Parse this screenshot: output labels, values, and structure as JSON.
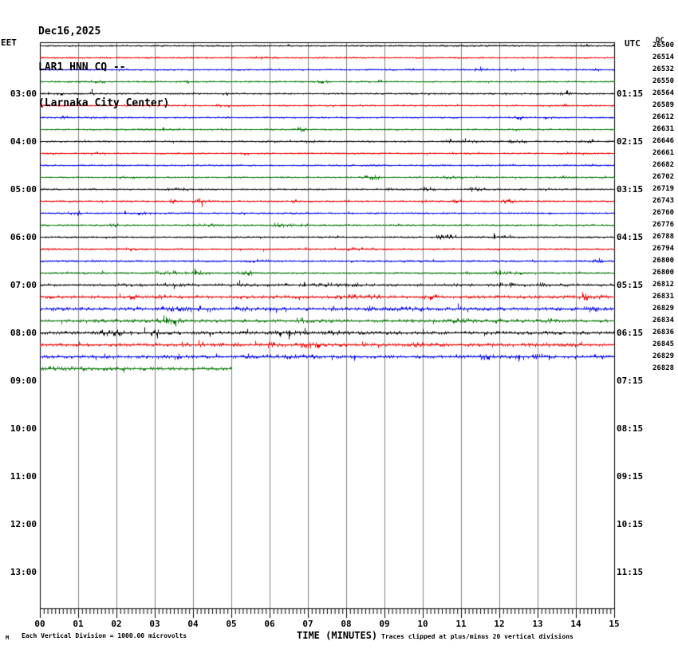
{
  "header": {
    "date": "Dec16,2025",
    "station": "LAR1 HNN CQ --",
    "location": "(Larnaka City Center)"
  },
  "axes": {
    "left_label": "EET",
    "right_label": "UTC",
    "dc_header": "DC",
    "x_label": "TIME (MINUTES)",
    "x_ticks": [
      "00",
      "01",
      "02",
      "03",
      "04",
      "05",
      "06",
      "07",
      "08",
      "09",
      "10",
      "11",
      "12",
      "13",
      "14",
      "15"
    ],
    "left_hour_labels": [
      {
        "text": "03:00",
        "row": 4
      },
      {
        "text": "04:00",
        "row": 8
      },
      {
        "text": "05:00",
        "row": 12
      },
      {
        "text": "06:00",
        "row": 16
      },
      {
        "text": "07:00",
        "row": 20
      },
      {
        "text": "08:00",
        "row": 24
      },
      {
        "text": "09:00",
        "row": 28
      },
      {
        "text": "10:00",
        "row": 32
      },
      {
        "text": "11:00",
        "row": 36
      },
      {
        "text": "12:00",
        "row": 40
      },
      {
        "text": "13:00",
        "row": 44
      }
    ],
    "right_hour_labels": [
      {
        "text": "01:15",
        "row": 4
      },
      {
        "text": "02:15",
        "row": 8
      },
      {
        "text": "03:15",
        "row": 12
      },
      {
        "text": "04:15",
        "row": 16
      },
      {
        "text": "05:15",
        "row": 20
      },
      {
        "text": "06:15",
        "row": 24
      },
      {
        "text": "07:15",
        "row": 28
      },
      {
        "text": "08:15",
        "row": 32
      },
      {
        "text": "09:15",
        "row": 36
      },
      {
        "text": "10:15",
        "row": 40
      },
      {
        "text": "11:15",
        "row": 44
      }
    ]
  },
  "footer": {
    "scale_glyph": "M",
    "left_note": "Each Vertical Division = 1000.00 microvolts",
    "right_note": "Traces clipped at plus/minus 20 vertical divisions"
  },
  "chart_data": {
    "type": "line",
    "variant": "helicorder",
    "title": "LAR1 HNN CQ -- (Larnaka City Center) Dec16,2025",
    "xlabel": "TIME (MINUTES)",
    "x_range_minutes": [
      0,
      15
    ],
    "minutes_per_line": 15,
    "grid": "vertical-minute-lines",
    "legend": "none",
    "scale_note": "Each Vertical Division = 1000.00 microvolts",
    "clip_note": "Traces clipped at plus/minus 20 vertical divisions",
    "colors": {
      "cycle": [
        "#000000",
        "#ee0000",
        "#0000ee",
        "#007700"
      ],
      "grid": "#808080",
      "border": "#000000",
      "background": "#ffffff"
    },
    "rows": [
      {
        "eet_start": "02:00",
        "dc": "26500",
        "amp": 0.9,
        "end_min": 15,
        "bursts": [
          [
            7.5,
            12.5,
            0.5
          ]
        ],
        "spikes": []
      },
      {
        "eet_start": "02:15",
        "dc": "26514",
        "amp": 0.9,
        "end_min": 15,
        "bursts": [
          [
            5.3,
            6.3,
            1.0
          ]
        ],
        "spikes": []
      },
      {
        "eet_start": "02:30",
        "dc": "26532",
        "amp": 0.8,
        "end_min": 15,
        "bursts": [
          [
            9.0,
            10.0,
            0.5
          ]
        ],
        "spikes": []
      },
      {
        "eet_start": "02:45",
        "dc": "26550",
        "amp": 0.8,
        "end_min": 15,
        "bursts": [
          [
            0.3,
            1.8,
            0.6
          ]
        ],
        "spikes": []
      },
      {
        "eet_start": "03:00",
        "dc": "26564",
        "amp": 0.9,
        "end_min": 15,
        "bursts": [
          [
            9.5,
            12.0,
            0.4
          ]
        ],
        "spikes": [
          [
            0.2,
            2
          ]
        ]
      },
      {
        "eet_start": "03:15",
        "dc": "26589",
        "amp": 0.9,
        "end_min": 15,
        "bursts": [
          [
            4.3,
            5.3,
            0.9
          ]
        ],
        "spikes": []
      },
      {
        "eet_start": "03:30",
        "dc": "26612",
        "amp": 0.8,
        "end_min": 15,
        "bursts": [
          [
            1.0,
            2.2,
            0.5
          ]
        ],
        "spikes": []
      },
      {
        "eet_start": "03:45",
        "dc": "26631",
        "amp": 0.8,
        "end_min": 15,
        "bursts": [
          [
            2.2,
            3.8,
            0.7
          ]
        ],
        "spikes": [
          [
            3.2,
            3
          ]
        ]
      },
      {
        "eet_start": "04:00",
        "dc": "26646",
        "amp": 0.9,
        "end_min": 15,
        "bursts": [
          [
            11.0,
            12.6,
            0.5
          ]
        ],
        "spikes": []
      },
      {
        "eet_start": "04:15",
        "dc": "26661",
        "amp": 0.9,
        "end_min": 15,
        "bursts": [
          [
            13.4,
            14.3,
            0.8
          ]
        ],
        "spikes": []
      },
      {
        "eet_start": "04:30",
        "dc": "26682",
        "amp": 0.9,
        "end_min": 15,
        "bursts": [
          [
            8.4,
            9.3,
            0.7
          ]
        ],
        "spikes": []
      },
      {
        "eet_start": "04:45",
        "dc": "26702",
        "amp": 0.8,
        "end_min": 15,
        "bursts": [],
        "spikes": []
      },
      {
        "eet_start": "05:00",
        "dc": "26719",
        "amp": 0.9,
        "end_min": 15,
        "bursts": [
          [
            12.9,
            13.7,
            0.7
          ]
        ],
        "spikes": []
      },
      {
        "eet_start": "05:15",
        "dc": "26743",
        "amp": 1.0,
        "end_min": 15,
        "bursts": [
          [
            3.8,
            4.7,
            1.3
          ]
        ],
        "spikes": []
      },
      {
        "eet_start": "05:30",
        "dc": "26760",
        "amp": 0.9,
        "end_min": 15,
        "bursts": [],
        "spikes": [
          [
            2.2,
            3
          ]
        ]
      },
      {
        "eet_start": "05:45",
        "dc": "26776",
        "amp": 1.0,
        "end_min": 15,
        "bursts": [
          [
            3.9,
            4.9,
            1.1
          ]
        ],
        "spikes": []
      },
      {
        "eet_start": "06:00",
        "dc": "26788",
        "amp": 1.0,
        "end_min": 15,
        "bursts": [
          [
            11.5,
            12.5,
            0.9
          ]
        ],
        "spikes": [
          [
            11.85,
            5
          ]
        ]
      },
      {
        "eet_start": "06:15",
        "dc": "26794",
        "amp": 1.2,
        "end_min": 15,
        "bursts": [
          [
            7.7,
            8.7,
            0.8
          ]
        ],
        "spikes": []
      },
      {
        "eet_start": "06:30",
        "dc": "26800",
        "amp": 1.3,
        "end_min": 15,
        "bursts": [
          [
            5.3,
            6.1,
            1.1
          ],
          [
            9.4,
            10.6,
            0.7
          ]
        ],
        "spikes": []
      },
      {
        "eet_start": "06:45",
        "dc": "26800",
        "amp": 1.3,
        "end_min": 15,
        "bursts": [
          [
            3.7,
            4.5,
            1.3
          ],
          [
            11.7,
            12.8,
            1.1
          ]
        ],
        "spikes": [
          [
            4.05,
            6
          ],
          [
            12.0,
            5
          ]
        ]
      },
      {
        "eet_start": "07:00",
        "dc": "26812",
        "amp": 1.7,
        "end_min": 15,
        "bursts": [
          [
            6.4,
            8.6,
            0.9
          ]
        ],
        "spikes": [
          [
            6.9,
            4
          ],
          [
            12.0,
            -3
          ]
        ]
      },
      {
        "eet_start": "07:15",
        "dc": "26831",
        "amp": 1.9,
        "end_min": 15,
        "bursts": [
          [
            7.4,
            9.3,
            1.5
          ],
          [
            13.8,
            14.9,
            1.1
          ]
        ],
        "spikes": []
      },
      {
        "eet_start": "07:30",
        "dc": "26829",
        "amp": 2.1,
        "end_min": 15,
        "bursts": [
          [
            2.7,
            4.7,
            1.3
          ],
          [
            8.9,
            10.3,
            0.9
          ]
        ],
        "spikes": [
          [
            6.0,
            -4
          ]
        ]
      },
      {
        "eet_start": "07:45",
        "dc": "26834",
        "amp": 2.1,
        "end_min": 15,
        "bursts": [
          [
            2.9,
            3.7,
            1.6
          ],
          [
            10.4,
            11.6,
            0.9
          ]
        ],
        "spikes": [
          [
            3.3,
            5
          ]
        ]
      },
      {
        "eet_start": "08:00",
        "dc": "26836",
        "amp": 2.2,
        "end_min": 15,
        "bursts": [
          [
            1.4,
            2.6,
            0.9
          ],
          [
            5.9,
            7.1,
            1.1
          ]
        ],
        "spikes": [
          [
            6.5,
            -8
          ]
        ]
      },
      {
        "eet_start": "08:15",
        "dc": "26845",
        "amp": 2.1,
        "end_min": 15,
        "bursts": [
          [
            9.5,
            10.2,
            1.3
          ],
          [
            12.4,
            14.6,
            0.9
          ]
        ],
        "spikes": []
      },
      {
        "eet_start": "08:30",
        "dc": "26829",
        "amp": 2.1,
        "end_min": 15,
        "bursts": [
          [
            5.4,
            7.6,
            0.9
          ]
        ],
        "spikes": [
          [
            8.2,
            -5
          ],
          [
            12.5,
            -6
          ],
          [
            13.3,
            -4
          ]
        ]
      },
      {
        "eet_start": "08:45",
        "dc": "26828",
        "amp": 2.3,
        "end_min": 5,
        "bursts": [
          [
            0.0,
            1.6,
            0.9
          ]
        ],
        "spikes": []
      }
    ]
  }
}
